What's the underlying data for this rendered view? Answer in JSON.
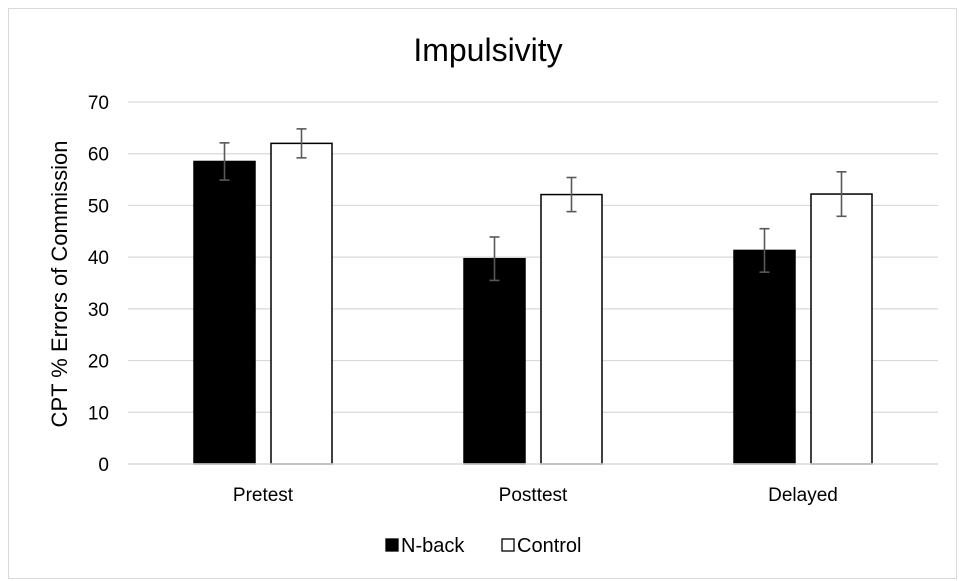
{
  "chart_data": {
    "type": "bar",
    "title": "Impulsivity",
    "xlabel": "",
    "ylabel": "CPT % Errors of Commission",
    "ylim": [
      0,
      70
    ],
    "yticks": [
      0,
      10,
      20,
      30,
      40,
      50,
      60,
      70
    ],
    "categories": [
      "Pretest",
      "Posttest",
      "Delayed"
    ],
    "series": [
      {
        "name": "N-back",
        "values": [
          58.5,
          39.7,
          41.3
        ],
        "error": [
          3.6,
          4.2,
          4.2
        ],
        "color": "#000000"
      },
      {
        "name": "Control",
        "values": [
          62.0,
          52.1,
          52.2
        ],
        "error": [
          2.8,
          3.3,
          4.3
        ],
        "color": "#ffffff"
      }
    ],
    "grid": true,
    "legend_position": "bottom"
  }
}
